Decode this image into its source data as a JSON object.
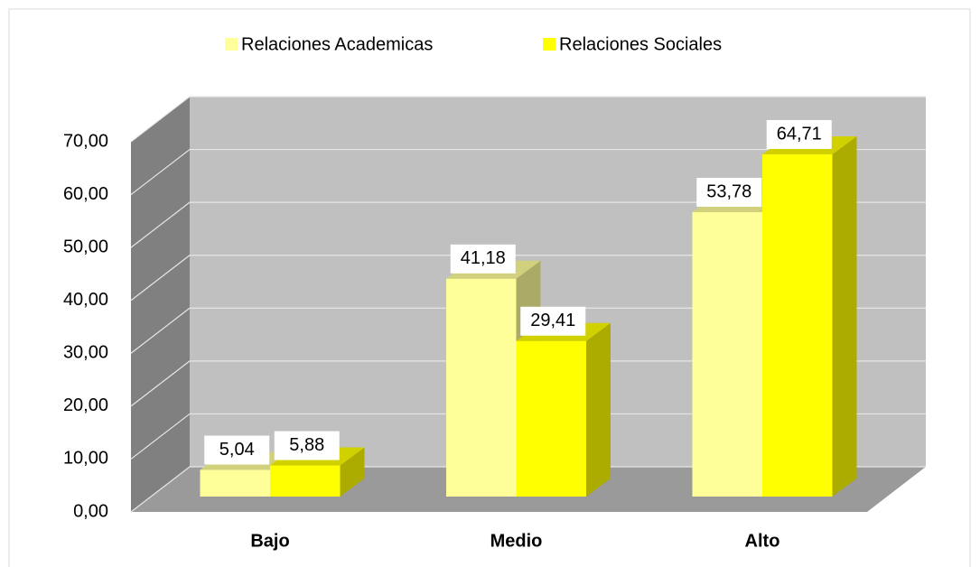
{
  "chart_data": {
    "type": "bar3d",
    "categories": [
      "Bajo",
      "Medio",
      "Alto"
    ],
    "series": [
      {
        "name": "Relaciones Academicas",
        "color": "#ffff99",
        "values": [
          5.04,
          41.18,
          53.78
        ],
        "value_labels": [
          "5,04",
          "41,18",
          "53,78"
        ]
      },
      {
        "name": "Relaciones Sociales",
        "color": "#ffff00",
        "values": [
          5.88,
          29.41,
          64.71
        ],
        "value_labels": [
          "5,88",
          "29,41",
          "64,71"
        ]
      }
    ],
    "ylim": [
      0,
      70
    ],
    "yticks": [
      {
        "value": 0,
        "label": "0,00"
      },
      {
        "value": 10,
        "label": "10,00"
      },
      {
        "value": 20,
        "label": "20,00"
      },
      {
        "value": 30,
        "label": "30,00"
      },
      {
        "value": 40,
        "label": "40,00"
      },
      {
        "value": 50,
        "label": "50,00"
      },
      {
        "value": 60,
        "label": "60,00"
      },
      {
        "value": 70,
        "label": "70,00"
      }
    ],
    "grid": true,
    "legend": "top"
  }
}
